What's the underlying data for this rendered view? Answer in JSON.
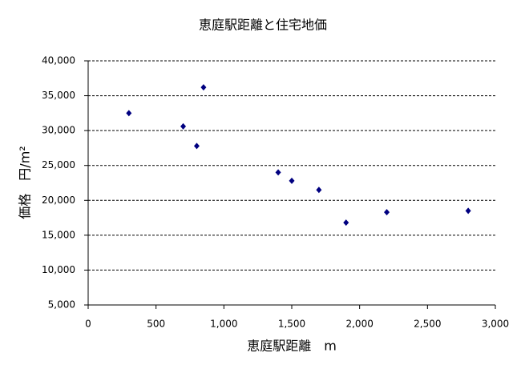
{
  "chart_data": {
    "type": "scatter",
    "title": "恵庭駅距離と住宅地価",
    "x_label": "恵庭駅距離　m",
    "y_label": "価格　円/m²",
    "series": [
      {
        "color": "#000080",
        "x": [
          300,
          700,
          800,
          850,
          1400,
          1500,
          1700,
          1900,
          2200,
          2800
        ],
        "values": [
          32500,
          30600,
          27800,
          36200,
          24000,
          22800,
          21500,
          16800,
          18300,
          18500
        ]
      }
    ],
    "xlim": [
      0,
      3000
    ],
    "xticks": [
      0,
      500,
      {
        "value": 1000,
        "label": "1,000"
      },
      {
        "value": 1500,
        "label": "1,500"
      },
      {
        "value": 2000,
        "label": "2,000"
      },
      {
        "value": 2500,
        "label": "2,500"
      },
      {
        "value": 3000,
        "label": "3,000"
      }
    ],
    "ylim": [
      5000,
      40000
    ],
    "yticks": [
      {
        "value": 5000,
        "label": "5,000"
      },
      {
        "value": 10000,
        "label": "10,000"
      },
      {
        "value": 15000,
        "label": "15,000"
      },
      {
        "value": 20000,
        "label": "20,000"
      },
      {
        "value": 25000,
        "label": "25,000"
      },
      {
        "value": 30000,
        "label": "30,000"
      },
      {
        "value": 35000,
        "label": "35,000"
      },
      {
        "value": 40000,
        "label": "40,000"
      }
    ],
    "grid": true
  }
}
